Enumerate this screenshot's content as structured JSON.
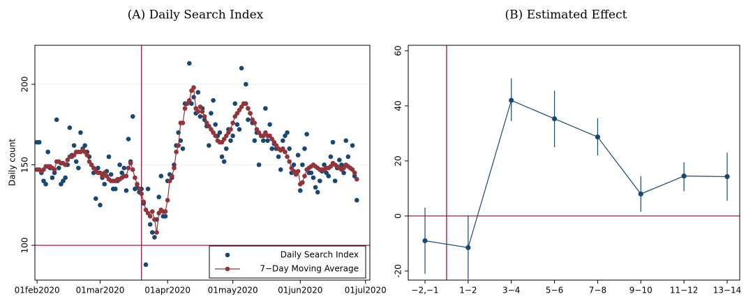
{
  "chart_data": [
    {
      "type": "line",
      "title": "(A) Daily Search Index",
      "ylabel": "Daily count",
      "x": [
        "01feb2020",
        "02feb2020",
        "03feb2020",
        "04feb2020",
        "05feb2020",
        "06feb2020",
        "07feb2020",
        "08feb2020",
        "09feb2020",
        "10feb2020",
        "11feb2020",
        "12feb2020",
        "13feb2020",
        "14feb2020",
        "15feb2020",
        "16feb2020",
        "17feb2020",
        "18feb2020",
        "19feb2020",
        "20feb2020",
        "21feb2020",
        "22feb2020",
        "23feb2020",
        "24feb2020",
        "25feb2020",
        "26feb2020",
        "27feb2020",
        "28feb2020",
        "29feb2020",
        "01mar2020",
        "02mar2020",
        "03mar2020",
        "04mar2020",
        "05mar2020",
        "06mar2020",
        "07mar2020",
        "08mar2020",
        "09mar2020",
        "10mar2020",
        "11mar2020",
        "12mar2020",
        "13mar2020",
        "14mar2020",
        "15mar2020",
        "16mar2020",
        "17mar2020",
        "18mar2020",
        "19mar2020",
        "20mar2020",
        "21mar2020",
        "22mar2020",
        "23mar2020",
        "24mar2020",
        "25mar2020",
        "26mar2020",
        "27mar2020",
        "28mar2020",
        "29mar2020",
        "30mar2020",
        "31mar2020",
        "01apr2020",
        "02apr2020",
        "03apr2020",
        "04apr2020",
        "05apr2020",
        "06apr2020",
        "07apr2020",
        "08apr2020",
        "09apr2020",
        "10apr2020",
        "11apr2020",
        "12apr2020",
        "13apr2020",
        "14apr2020",
        "15apr2020",
        "16apr2020",
        "17apr2020",
        "18apr2020",
        "19apr2020",
        "20apr2020",
        "21apr2020",
        "22apr2020",
        "23apr2020",
        "24apr2020",
        "25apr2020",
        "26apr2020",
        "27apr2020",
        "28apr2020",
        "29apr2020",
        "30apr2020",
        "01may2020",
        "02may2020",
        "03may2020",
        "04may2020",
        "05may2020",
        "06may2020",
        "07may2020",
        "08may2020",
        "09may2020",
        "10may2020",
        "11may2020",
        "12may2020",
        "13may2020",
        "14may2020",
        "15may2020",
        "16may2020",
        "17may2020",
        "18may2020",
        "19may2020",
        "20may2020",
        "21may2020",
        "22may2020",
        "23may2020",
        "24may2020",
        "25may2020",
        "26may2020",
        "27may2020",
        "28may2020",
        "29may2020",
        "30may2020",
        "31may2020",
        "01jun2020",
        "02jun2020",
        "03jun2020",
        "04jun2020",
        "05jun2020",
        "06jun2020",
        "07jun2020",
        "08jun2020",
        "09jun2020",
        "10jun2020",
        "11jun2020",
        "12jun2020",
        "13jun2020",
        "14jun2020",
        "15jun2020",
        "16jun2020",
        "17jun2020",
        "18jun2020",
        "19jun2020",
        "20jun2020",
        "21jun2020",
        "22jun2020",
        "23jun2020",
        "24jun2020",
        "25jun2020",
        "26jun2020",
        "27jun2020"
      ],
      "series": [
        {
          "name": "Daily Search Index",
          "color": "#1a476f",
          "style": "markers",
          "values": [
            164,
            164,
            145,
            140,
            138,
            158,
            148,
            142,
            145,
            178,
            148,
            138,
            140,
            142,
            150,
            173,
            156,
            162,
            152,
            148,
            170,
            160,
            162,
            158,
            155,
            150,
            145,
            129,
            148,
            125,
            142,
            138,
            146,
            155,
            144,
            135,
            135,
            140,
            150,
            145,
            148,
            134,
            166,
            152,
            180,
            135,
            136,
            133,
            135,
            126,
            88,
            135,
            113,
            108,
            105,
            116,
            130,
            143,
            118,
            118,
            140,
            144,
            142,
            150,
            162,
            170,
            165,
            160,
            188,
            188,
            213,
            188,
            192,
            182,
            195,
            180,
            185,
            178,
            174,
            162,
            182,
            190,
            175,
            168,
            170,
            155,
            152,
            160,
            172,
            165,
            168,
            188,
            175,
            172,
            210,
            188,
            200,
            178,
            182,
            176,
            165,
            170,
            150,
            168,
            165,
            185,
            165,
            175,
            160,
            163,
            160,
            155,
            147,
            165,
            168,
            170,
            160,
            145,
            150,
            145,
            156,
            134,
            150,
            160,
            169,
            145,
            145,
            142,
            136,
            133,
            140,
            146,
            150,
            145,
            143,
            155,
            164,
            140,
            148,
            153,
            150,
            145,
            165,
            155,
            148,
            162,
            143,
            128
          ]
        },
        {
          "name": "7−Day Moving Average",
          "color": "#90353b",
          "style": "lines+markers",
          "values": [
            147,
            147,
            146,
            147,
            149,
            149,
            149,
            148,
            147,
            152,
            152,
            151,
            151,
            150,
            153,
            155,
            155,
            156,
            158,
            158,
            158,
            159,
            158,
            156,
            152,
            150,
            148,
            146,
            145,
            145,
            143,
            145,
            143,
            141,
            140,
            140,
            140,
            141,
            141,
            142,
            143,
            143,
            148,
            151,
            147,
            142,
            138,
            135,
            132,
            127,
            122,
            120,
            118,
            121,
            116,
            108,
            120,
            122,
            121,
            121,
            128,
            140,
            143,
            148,
            158,
            162,
            176,
            176,
            185,
            188,
            190,
            196,
            198,
            185,
            183,
            186,
            183,
            180,
            176,
            174,
            172,
            170,
            168,
            165,
            164,
            164,
            166,
            168,
            170,
            172,
            176,
            180,
            182,
            184,
            186,
            188,
            188,
            185,
            182,
            178,
            176,
            172,
            170,
            168,
            168,
            170,
            168,
            168,
            166,
            164,
            162,
            160,
            159,
            160,
            158,
            155,
            152,
            148,
            146,
            144,
            146,
            138,
            139,
            143,
            147,
            148,
            149,
            150,
            149,
            148,
            147,
            147,
            147,
            148,
            148,
            149,
            151,
            150,
            149,
            148,
            147,
            148,
            150,
            149,
            148,
            147,
            145,
            141
          ]
        }
      ],
      "xlim": [
        "31jan2020",
        "03jul2020"
      ],
      "xticks": [
        "01feb2020",
        "01mar2020",
        "01apr2020",
        "01may2020",
        "01jun2020",
        "01jul2020"
      ],
      "ylim": [
        78.4,
        224.2
      ],
      "yticks": [
        100,
        150,
        200
      ],
      "grid": true,
      "vline": "20mar2020",
      "hline": 100,
      "line_color": "#990033",
      "legend": "lower right"
    },
    {
      "type": "errorbar",
      "title": "(B) Estimated Effect",
      "categories": [
        "−2,−1",
        "1−2",
        "3−4",
        "5−6",
        "7−8",
        "9−10",
        "11−12",
        "13−14"
      ],
      "values": [
        -9,
        -11.5,
        42,
        35.3,
        28.7,
        8,
        14.5,
        14.3
      ],
      "lower": [
        -21,
        -23,
        34.5,
        25,
        22,
        1.5,
        9,
        5.5
      ],
      "upper": [
        3,
        0,
        50,
        45.5,
        35.5,
        14.5,
        19.5,
        23
      ],
      "color": "#1a476f",
      "ylim": [
        -23.3,
        62
      ],
      "yticks": [
        -20,
        0,
        20,
        40,
        60
      ],
      "grid": false,
      "hline": 0,
      "line_color": "#990033"
    }
  ]
}
